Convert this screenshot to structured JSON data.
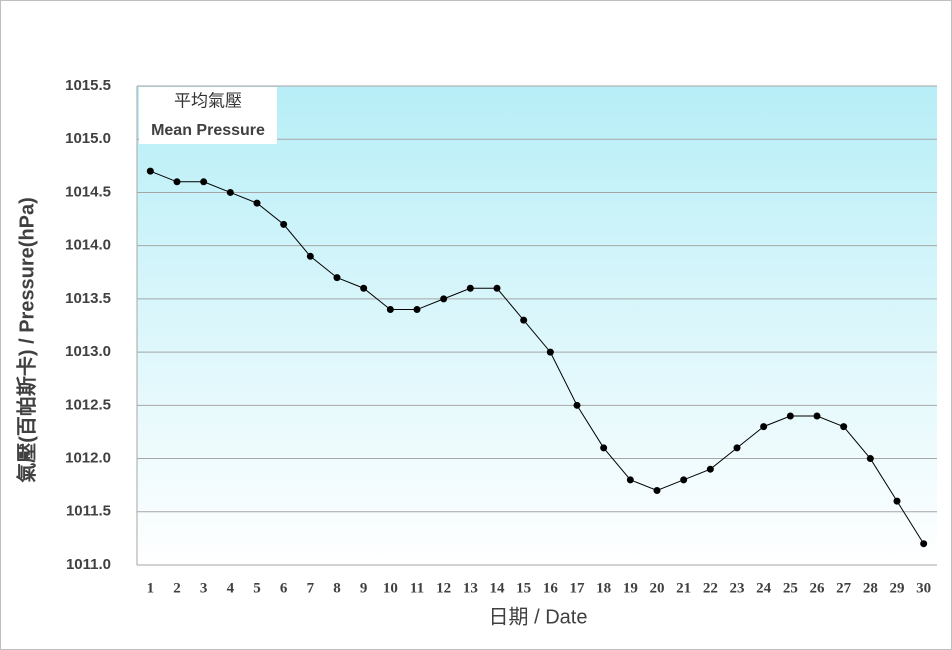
{
  "chart_data": {
    "type": "line",
    "title": "平均氣壓",
    "subtitle": "Mean Pressure",
    "x_label": "日期 / Date",
    "y_label": "氣壓(百帕斯卡) / Pressure(hPa)",
    "categories": [
      "1",
      "2",
      "3",
      "4",
      "5",
      "6",
      "7",
      "8",
      "9",
      "10",
      "11",
      "12",
      "13",
      "14",
      "15",
      "16",
      "17",
      "18",
      "19",
      "20",
      "21",
      "22",
      "23",
      "24",
      "25",
      "26",
      "27",
      "28",
      "29",
      "30"
    ],
    "values": [
      1014.7,
      1014.6,
      1014.6,
      1014.5,
      1014.4,
      1014.2,
      1013.9,
      1013.7,
      1013.6,
      1013.4,
      1013.4,
      1013.5,
      1013.6,
      1013.6,
      1013.3,
      1013.0,
      1012.5,
      1012.1,
      1011.8,
      1011.7,
      1011.8,
      1011.9,
      1012.1,
      1012.3,
      1012.4,
      1012.4,
      1012.3,
      1012.0,
      1011.6,
      1011.2
    ],
    "color": "#000000",
    "ylim": [
      1011,
      1015.5
    ],
    "yticks": [
      {
        "value": 1011,
        "label": "1011.0"
      },
      1011.5,
      {
        "value": 1012,
        "label": "1012.0"
      },
      1012.5,
      {
        "value": 1013,
        "label": "1013.0"
      },
      1013.5,
      {
        "value": 1014,
        "label": "1014.0"
      },
      1014.5,
      {
        "value": 1015,
        "label": "1015.0"
      },
      1015.5
    ],
    "grid": true
  }
}
